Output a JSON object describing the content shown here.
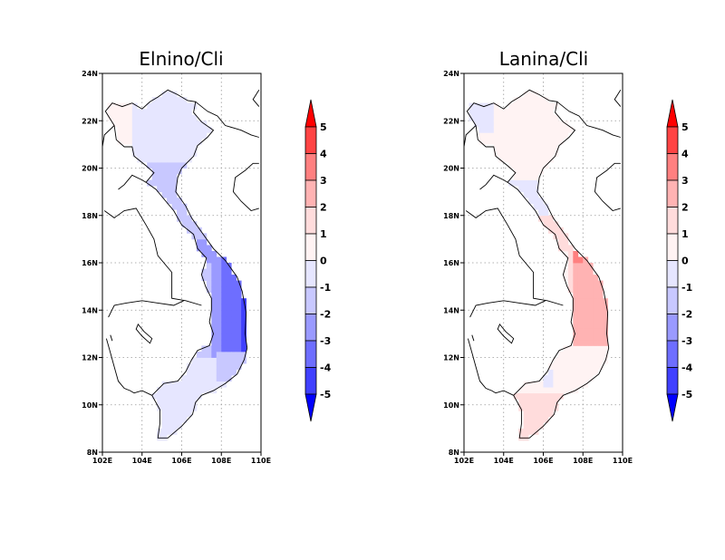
{
  "panels": [
    {
      "title": "Elnino/Cli",
      "scheme": "cool",
      "coast_color": "#000000"
    },
    {
      "title": "Lanina/Cli",
      "scheme": "warm",
      "coast_color": "#000000"
    }
  ],
  "axes": {
    "x_ticks": [
      "102E",
      "104E",
      "106E",
      "108E",
      "110E"
    ],
    "y_ticks": [
      "24N",
      "22N",
      "20N",
      "18N",
      "16N",
      "14N",
      "12N",
      "10N",
      "8N"
    ],
    "lon_range": [
      102,
      110
    ],
    "lat_range": [
      8,
      24
    ],
    "grid": "dotted"
  },
  "colorbar": {
    "labels": [
      "5",
      "4",
      "3",
      "2",
      "1",
      "0",
      "-1",
      "-2",
      "-3",
      "-4",
      "-5"
    ],
    "colors": [
      "#ff0000",
      "#ff4444",
      "#ff8080",
      "#ffb3b3",
      "#ffdcdc",
      "#fff3f3",
      "#e6e6ff",
      "#c8c8ff",
      "#9a9aff",
      "#6e6eff",
      "#4040ff",
      "#0000ff"
    ],
    "range": [
      -5,
      5
    ]
  }
}
